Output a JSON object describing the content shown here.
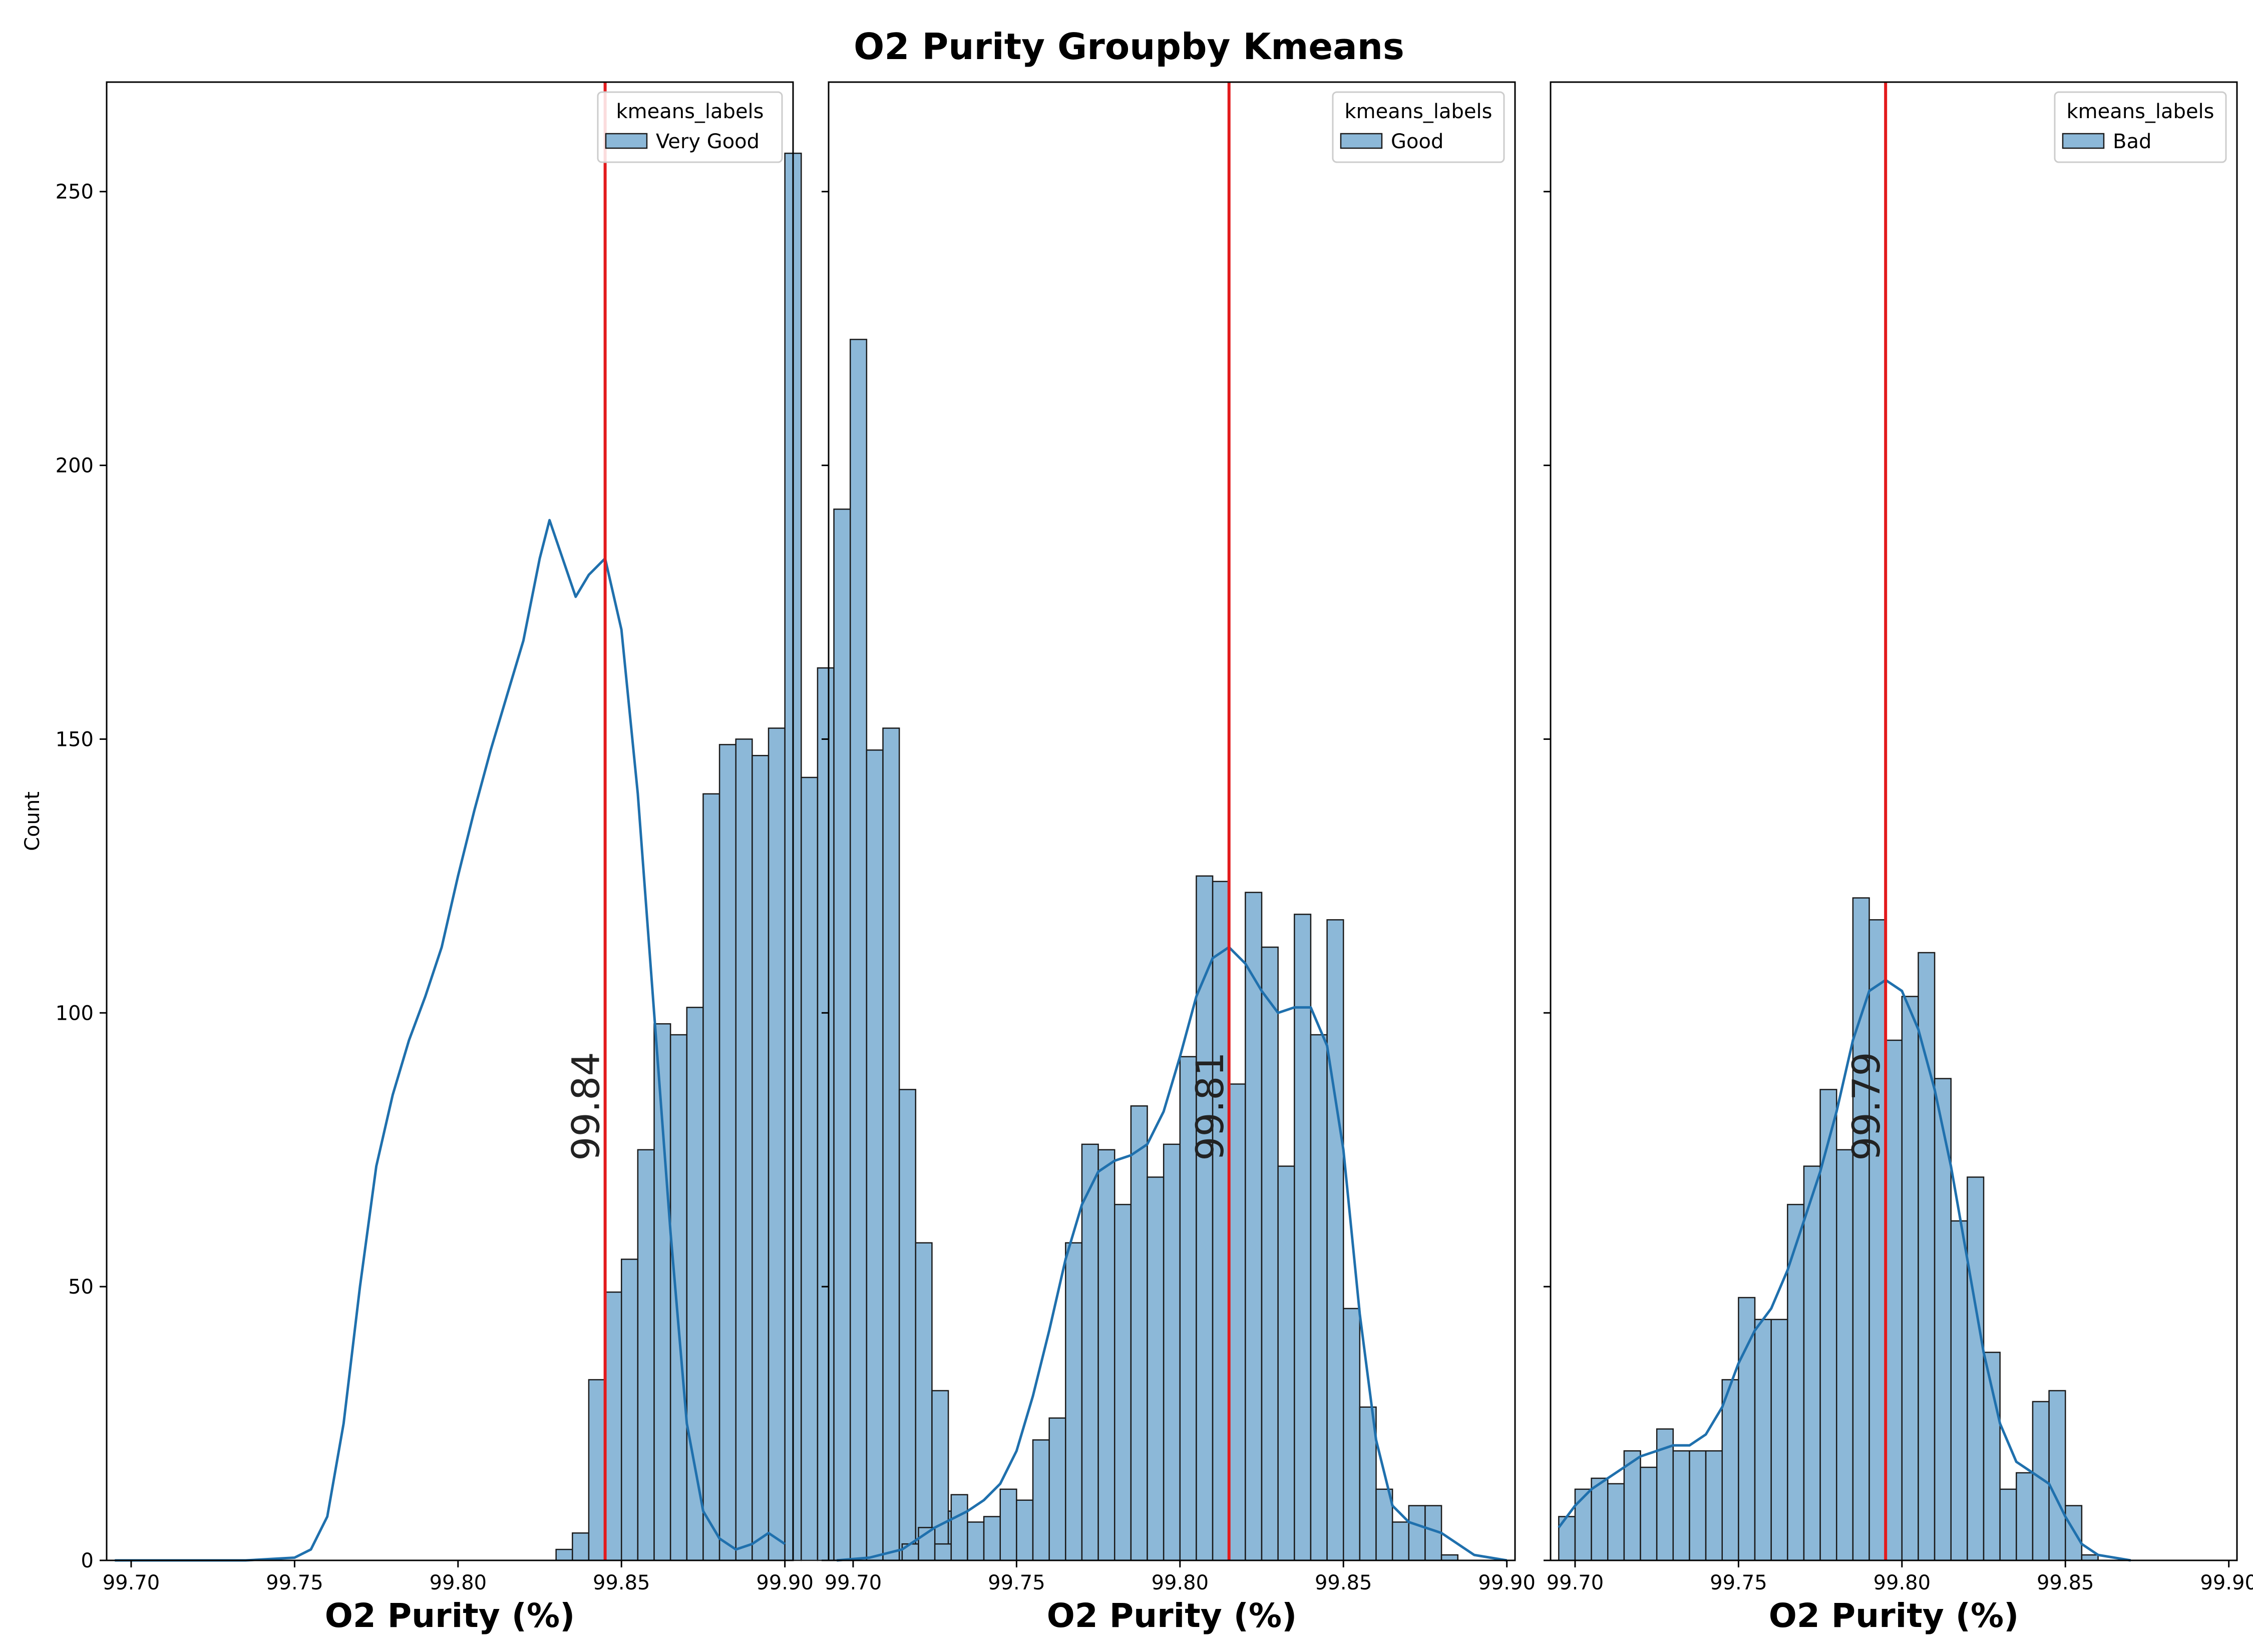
{
  "figure": {
    "title": "O2 Purity Groupby Kmeans"
  },
  "colors": {
    "bar_fill": "#8cb8d8",
    "bar_edge": "#1a1a1a",
    "kde": "#1f70ad",
    "mean_line": "#e31a1c",
    "axis": "#000000"
  },
  "chart_data": [
    {
      "type": "histogram",
      "xlabel": "O2 Purity (%)",
      "ylabel": "Count",
      "xlim": [
        99.6925,
        99.9025
      ],
      "ylim": [
        0,
        270
      ],
      "xticks": [
        99.7,
        99.75,
        99.8,
        99.85,
        99.9
      ],
      "xtick_labels": [
        "99.70",
        "99.75",
        "99.80",
        "99.85",
        "99.90"
      ],
      "yticks": [
        0,
        50,
        100,
        150,
        200,
        250
      ],
      "ytick_labels": [
        "0",
        "50",
        "100",
        "150",
        "200",
        "250"
      ],
      "legend": {
        "title": "kmeans_labels",
        "label": "Very Good",
        "position": "upper right"
      },
      "mean": 99.845,
      "mean_label": "99.84",
      "bin_start": 99.695,
      "bin_width": 0.005,
      "counts": [
        0,
        0,
        0,
        0,
        0,
        0,
        0,
        0,
        0,
        0,
        0,
        0,
        0,
        0,
        0,
        0,
        0,
        0,
        0,
        0,
        0,
        0,
        0,
        0,
        0,
        0,
        0,
        2,
        5,
        33,
        49,
        55,
        75,
        98,
        96,
        101,
        140,
        149,
        150,
        147,
        152,
        257,
        143,
        163,
        192,
        223,
        148,
        152,
        86,
        58,
        31,
        9,
        4,
        1,
        6,
        6
      ],
      "kde": [
        [
          99.695,
          0
        ],
        [
          99.735,
          0
        ],
        [
          99.75,
          0.5
        ],
        [
          99.755,
          2
        ],
        [
          99.76,
          8
        ],
        [
          99.765,
          25
        ],
        [
          99.77,
          50
        ],
        [
          99.775,
          72
        ],
        [
          99.78,
          85
        ],
        [
          99.785,
          95
        ],
        [
          99.79,
          103
        ],
        [
          99.795,
          112
        ],
        [
          99.8,
          125
        ],
        [
          99.805,
          137
        ],
        [
          99.81,
          148
        ],
        [
          99.815,
          158
        ],
        [
          99.82,
          168
        ],
        [
          99.825,
          183
        ],
        [
          99.828,
          190
        ],
        [
          99.832,
          183
        ],
        [
          99.836,
          176
        ],
        [
          99.84,
          180
        ],
        [
          99.845,
          183
        ],
        [
          99.85,
          170
        ],
        [
          99.855,
          140
        ],
        [
          99.86,
          100
        ],
        [
          99.865,
          60
        ],
        [
          99.87,
          25
        ],
        [
          99.875,
          9
        ],
        [
          99.88,
          4
        ],
        [
          99.885,
          2
        ],
        [
          99.89,
          3
        ],
        [
          99.895,
          5
        ],
        [
          99.9,
          3
        ]
      ]
    },
    {
      "type": "histogram",
      "xlabel": "O2 Purity (%)",
      "ylabel": "",
      "xlim": [
        99.6925,
        99.9025
      ],
      "ylim": [
        0,
        270
      ],
      "xticks": [
        99.7,
        99.75,
        99.8,
        99.85,
        99.9
      ],
      "xtick_labels": [
        "99.70",
        "99.75",
        "99.80",
        "99.85",
        "99.90"
      ],
      "yticks": [
        0,
        50,
        100,
        150,
        200,
        250
      ],
      "ytick_labels": [
        "",
        "",
        "",
        "",
        "",
        ""
      ],
      "legend": {
        "title": "kmeans_labels",
        "label": "Good",
        "position": "upper right"
      },
      "mean": 99.815,
      "mean_label": "99.81",
      "bin_start": 99.715,
      "bin_width": 0.005,
      "counts": [
        3,
        6,
        3,
        12,
        7,
        8,
        13,
        11,
        22,
        26,
        58,
        76,
        75,
        65,
        83,
        70,
        76,
        92,
        125,
        124,
        87,
        122,
        112,
        72,
        118,
        96,
        117,
        46,
        28,
        13,
        7,
        10,
        10,
        1
      ],
      "kde": [
        [
          99.695,
          0
        ],
        [
          99.705,
          0.5
        ],
        [
          99.715,
          2
        ],
        [
          99.72,
          4
        ],
        [
          99.725,
          6
        ],
        [
          99.73,
          7.5
        ],
        [
          99.735,
          9
        ],
        [
          99.74,
          11
        ],
        [
          99.745,
          14
        ],
        [
          99.75,
          20
        ],
        [
          99.755,
          30
        ],
        [
          99.76,
          42
        ],
        [
          99.765,
          55
        ],
        [
          99.77,
          65
        ],
        [
          99.775,
          71
        ],
        [
          99.78,
          73
        ],
        [
          99.785,
          74
        ],
        [
          99.79,
          76
        ],
        [
          99.795,
          82
        ],
        [
          99.8,
          92
        ],
        [
          99.805,
          103
        ],
        [
          99.81,
          110
        ],
        [
          99.815,
          112
        ],
        [
          99.82,
          109
        ],
        [
          99.825,
          104
        ],
        [
          99.83,
          100
        ],
        [
          99.835,
          101
        ],
        [
          99.84,
          101
        ],
        [
          99.845,
          94
        ],
        [
          99.85,
          75
        ],
        [
          99.855,
          45
        ],
        [
          99.86,
          22
        ],
        [
          99.865,
          10
        ],
        [
          99.87,
          7
        ],
        [
          99.875,
          6
        ],
        [
          99.88,
          5
        ],
        [
          99.885,
          3
        ],
        [
          99.89,
          1
        ],
        [
          99.9,
          0
        ]
      ]
    },
    {
      "type": "histogram",
      "xlabel": "O2 Purity (%)",
      "ylabel": "",
      "xlim": [
        99.6925,
        99.9025
      ],
      "ylim": [
        0,
        270
      ],
      "xticks": [
        99.7,
        99.75,
        99.8,
        99.85,
        99.9
      ],
      "xtick_labels": [
        "99.70",
        "99.75",
        "99.80",
        "99.85",
        "99.90"
      ],
      "yticks": [
        0,
        50,
        100,
        150,
        200,
        250
      ],
      "ytick_labels": [
        "",
        "",
        "",
        "",
        "",
        ""
      ],
      "legend": {
        "title": "kmeans_labels",
        "label": "Bad",
        "position": "upper right"
      },
      "mean": 99.795,
      "mean_label": "99.79",
      "bin_start": 99.695,
      "bin_width": 0.005,
      "counts": [
        8,
        13,
        15,
        14,
        20,
        17,
        24,
        20,
        20,
        20,
        33,
        48,
        44,
        44,
        65,
        72,
        86,
        75,
        121,
        117,
        95,
        103,
        111,
        88,
        62,
        70,
        38,
        13,
        16,
        29,
        31,
        10,
        1
      ],
      "kde": [
        [
          99.695,
          6
        ],
        [
          99.7,
          10
        ],
        [
          99.705,
          13
        ],
        [
          99.71,
          15
        ],
        [
          99.715,
          17
        ],
        [
          99.72,
          19
        ],
        [
          99.725,
          20
        ],
        [
          99.73,
          21
        ],
        [
          99.735,
          21
        ],
        [
          99.74,
          23
        ],
        [
          99.745,
          28
        ],
        [
          99.75,
          36
        ],
        [
          99.755,
          42
        ],
        [
          99.76,
          46
        ],
        [
          99.765,
          53
        ],
        [
          99.77,
          62
        ],
        [
          99.775,
          71
        ],
        [
          99.78,
          82
        ],
        [
          99.785,
          95
        ],
        [
          99.79,
          104
        ],
        [
          99.795,
          106
        ],
        [
          99.8,
          104
        ],
        [
          99.805,
          97
        ],
        [
          99.81,
          86
        ],
        [
          99.815,
          72
        ],
        [
          99.82,
          55
        ],
        [
          99.825,
          38
        ],
        [
          99.83,
          25
        ],
        [
          99.835,
          18
        ],
        [
          99.84,
          16
        ],
        [
          99.845,
          14
        ],
        [
          99.85,
          8
        ],
        [
          99.855,
          3
        ],
        [
          99.86,
          1
        ],
        [
          99.87,
          0
        ]
      ]
    }
  ]
}
